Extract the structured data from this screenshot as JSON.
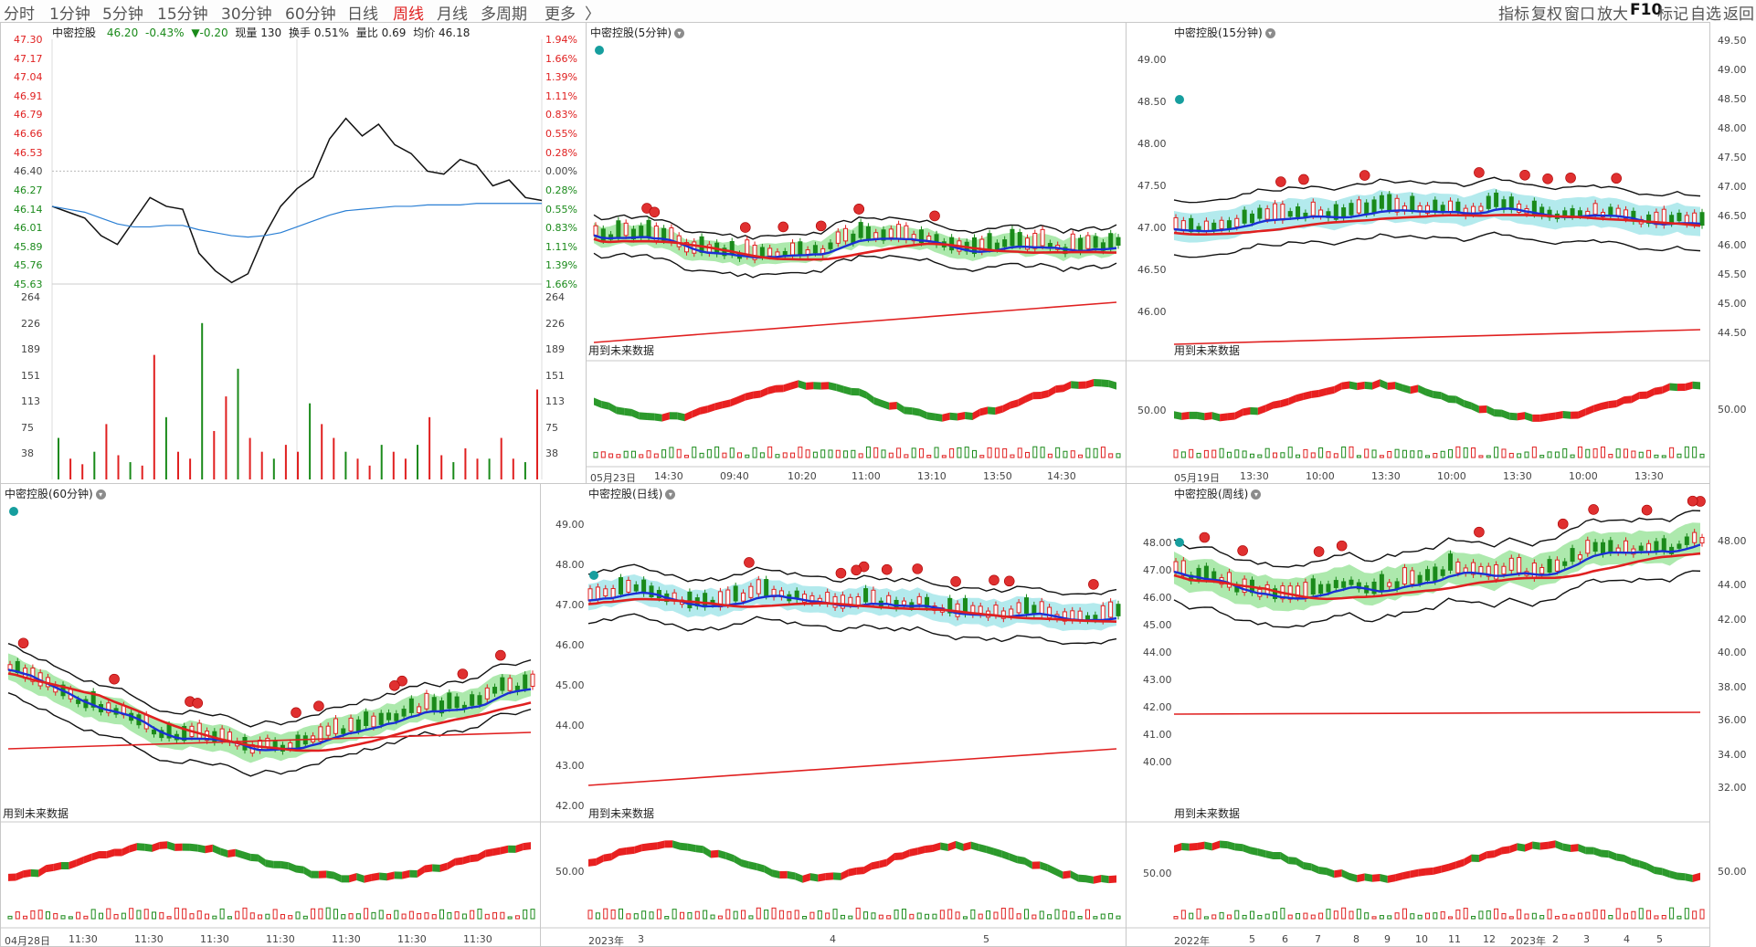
{
  "toolbar": {
    "periods": [
      "分时",
      "1分钟",
      "5分钟",
      "15分钟",
      "30分钟",
      "60分钟",
      "日线",
      "周线",
      "月线",
      "多周期",
      "更多"
    ],
    "more_arrow": "〉",
    "active_period": "周线",
    "right_tools": [
      "指标",
      "复权",
      "窗口",
      "放大",
      "F10",
      "标记",
      "自选",
      "返回"
    ]
  },
  "intraday": {
    "title": "中密控股",
    "price": "46.20",
    "change_pct": "-0.43%",
    "change": "▼-0.20",
    "vol_label": "现量",
    "vol_value": "130",
    "turnover_label": "换手",
    "turnover_value": "0.51%",
    "ratio_label": "量比",
    "ratio_value": "0.69",
    "avg_label": "均价",
    "avg_value": "46.18",
    "price_ticks": [
      "47.30",
      "47.17",
      "47.04",
      "46.91",
      "46.79",
      "46.66",
      "46.53",
      "46.40",
      "46.27",
      "46.14",
      "46.01",
      "45.89",
      "45.76",
      "45.63"
    ],
    "pct_ticks": [
      "1.94%",
      "1.66%",
      "1.39%",
      "1.11%",
      "0.83%",
      "0.55%",
      "0.28%",
      "0.00%",
      "0.28%",
      "0.55%",
      "0.83%",
      "1.11%",
      "1.39%",
      "1.66%"
    ],
    "vol_ticks": [
      "264",
      "226",
      "189",
      "151",
      "113",
      "75",
      "38"
    ],
    "colors": {
      "up": "#e02020",
      "down": "#1a8a1a",
      "price_line": "#111111",
      "avg_line": "#2a7fd4"
    }
  },
  "panels": [
    {
      "id": "p5m",
      "title": "中密控股(5分钟)",
      "future_note": "用到未来数据",
      "times": [
        "05月23日",
        "14:30",
        "09:40",
        "10:20",
        "11:00",
        "13:10",
        "13:50",
        "14:30"
      ],
      "sub_tick": ""
    },
    {
      "id": "p15m",
      "title": "中密控股(15分钟)",
      "future_note": "用到未来数据",
      "price_ticks": [
        "49.00",
        "48.50",
        "48.00",
        "47.50",
        "47.00",
        "46.50",
        "46.00"
      ],
      "sub_tick": "50.00",
      "times": [
        "05月19日",
        "13:30",
        "10:00",
        "13:30",
        "10:00",
        "13:30",
        "10:00",
        "13:30"
      ]
    },
    {
      "id": "p60m",
      "title": "中密控股(60分钟)",
      "future_note": "用到未来数据",
      "times": [
        "04月28日",
        "11:30",
        "11:30",
        "11:30",
        "11:30",
        "11:30",
        "11:30",
        "11:30"
      ],
      "sub_tick": ""
    },
    {
      "id": "pday",
      "title": "中密控股(日线)",
      "future_note": "用到未来数据",
      "price_ticks": [
        "49.00",
        "48.00",
        "47.00",
        "46.00",
        "45.00",
        "44.00",
        "43.00",
        "42.00"
      ],
      "sub_tick": "50.00",
      "times": [
        "2023年",
        "3",
        "4",
        "5"
      ]
    },
    {
      "id": "pweek",
      "title": "中密控股(周线)",
      "future_note": "用到未来数据",
      "price_ticks": [
        "48.00",
        "47.00",
        "46.00",
        "45.00",
        "44.00",
        "43.00",
        "42.00",
        "41.00",
        "40.00"
      ],
      "sub_tick": "50.00",
      "times": [
        "2022年",
        "5",
        "6",
        "7",
        "8",
        "9",
        "10",
        "11",
        "12",
        "2023年",
        "2",
        "3",
        "4",
        "5"
      ]
    }
  ],
  "right_axis": {
    "top_ticks": [
      "49.50",
      "49.00",
      "48.50",
      "48.00",
      "47.50",
      "47.00",
      "46.50",
      "46.00",
      "45.50",
      "45.00",
      "44.50"
    ],
    "top_sub_tick": "50.00",
    "bottom_ticks": [
      "48.00",
      "44.00",
      "42.00",
      "40.00",
      "38.00",
      "36.00",
      "34.00",
      "32.00"
    ],
    "bottom_sub_tick": "50.00"
  },
  "chart_data": [
    {
      "type": "line",
      "title": "中密控股",
      "series": [
        {
          "name": "",
          "values": [
            46.16,
            46.12,
            46.08,
            45.96,
            45.9,
            46.06,
            46.22,
            46.16,
            46.14,
            45.84,
            45.72,
            45.64,
            45.7,
            45.96,
            46.16,
            46.28,
            46.36,
            46.62,
            46.76,
            46.64,
            46.72,
            46.58,
            46.52,
            46.4,
            46.38,
            46.48,
            46.44,
            46.3,
            46.34,
            46.22,
            46.2
          ]
        },
        {
          "name": "均价",
          "values": [
            46.16,
            46.14,
            46.12,
            46.08,
            46.04,
            46.02,
            46.02,
            46.03,
            46.03,
            46.0,
            45.98,
            45.96,
            45.95,
            45.96,
            45.98,
            46.02,
            46.06,
            46.1,
            46.13,
            46.14,
            46.15,
            46.16,
            46.16,
            46.17,
            46.17,
            46.17,
            46.18,
            46.18,
            46.18,
            46.18,
            46.18
          ]
        }
      ],
      "ylim": [
        45.63,
        47.3
      ]
    },
    {
      "type": "bar",
      "title": "",
      "series": [
        {
          "name": "",
          "values": [
            60,
            30,
            22,
            40,
            80,
            35,
            25,
            20,
            180,
            90,
            40,
            30,
            226,
            70,
            120,
            160,
            60,
            40,
            30,
            50,
            40,
            110,
            80,
            60,
            40,
            30,
            20,
            50,
            40,
            30,
            50,
            90,
            35,
            25,
            45,
            30,
            30,
            60,
            30,
            25,
            130
          ]
        }
      ],
      "ylim": [
        0,
        264
      ]
    }
  ]
}
